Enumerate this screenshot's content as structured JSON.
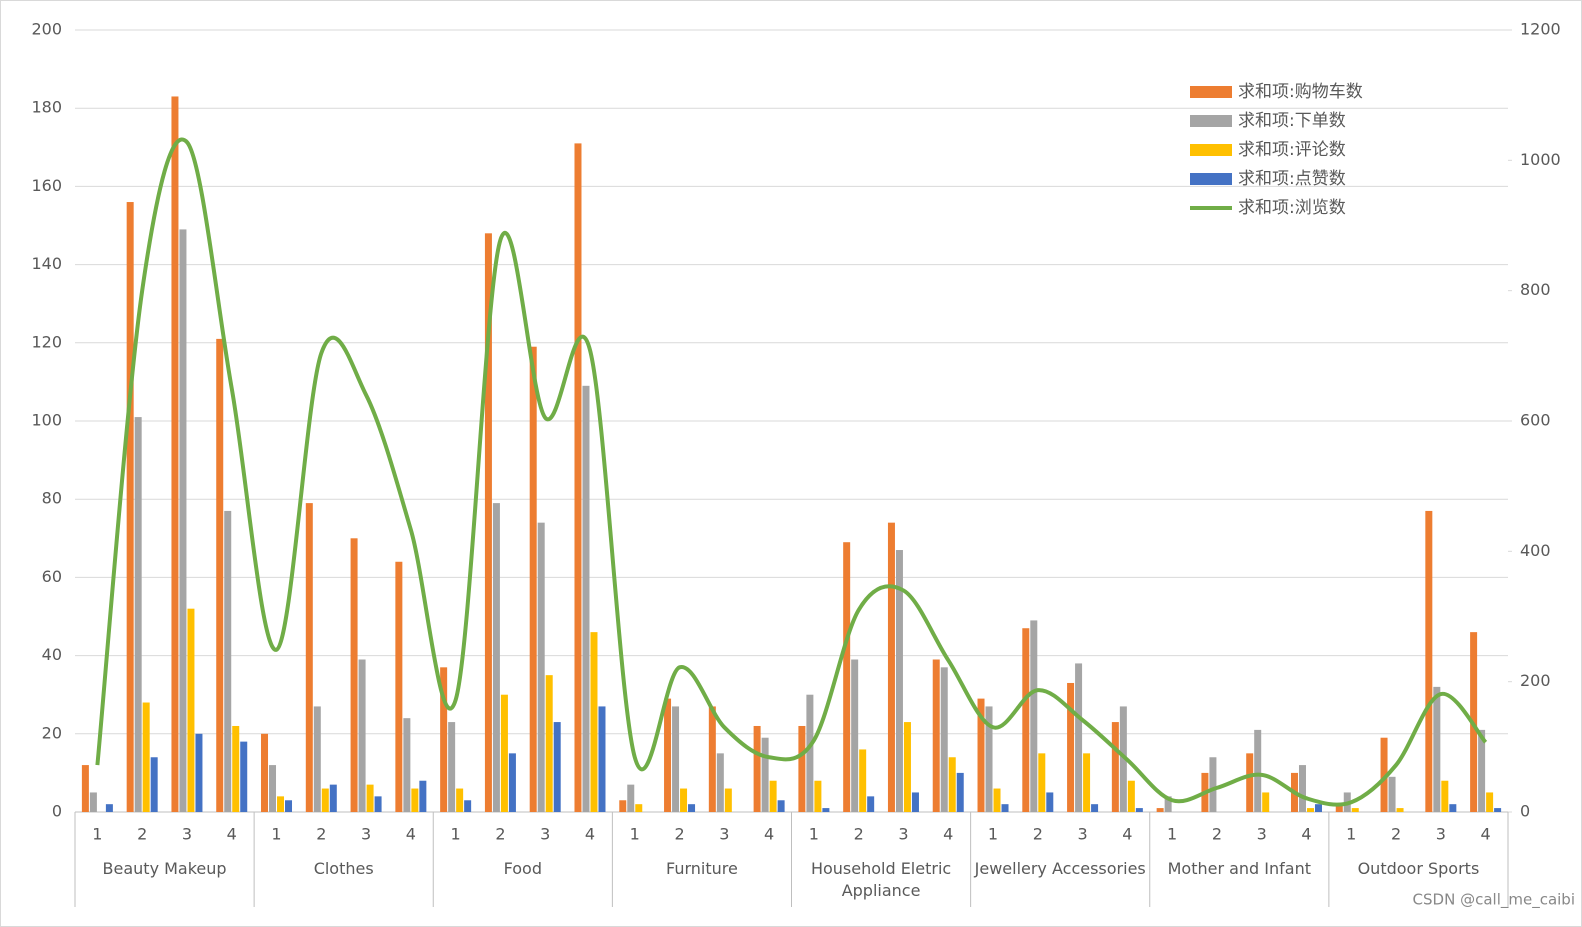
{
  "chart_data": {
    "type": "bar",
    "groups": [
      "Beauty Makeup",
      "Clothes",
      "Food",
      "Furniture",
      "Household Eletric Appliance",
      "Jewellery Accessories",
      "Mother and Infant",
      "Outdoor Sports"
    ],
    "categories": [
      "1",
      "2",
      "3",
      "4",
      "1",
      "2",
      "3",
      "4",
      "1",
      "2",
      "3",
      "4",
      "1",
      "2",
      "3",
      "4",
      "1",
      "2",
      "3",
      "4",
      "1",
      "2",
      "3",
      "4",
      "1",
      "2",
      "3",
      "4",
      "1",
      "2",
      "3",
      "4"
    ],
    "series": [
      {
        "name": "求和项:购物车数",
        "color": "#ed7d31",
        "type": "bar",
        "values": [
          12,
          156,
          183,
          121,
          20,
          79,
          70,
          64,
          37,
          148,
          119,
          171,
          3,
          29,
          27,
          22,
          22,
          69,
          74,
          39,
          29,
          47,
          33,
          23,
          1,
          10,
          15,
          10,
          2,
          19,
          77,
          46
        ]
      },
      {
        "name": "求和项:下单数",
        "color": "#a5a5a5",
        "type": "bar",
        "values": [
          5,
          101,
          149,
          77,
          12,
          27,
          39,
          24,
          23,
          79,
          74,
          109,
          7,
          27,
          15,
          19,
          30,
          39,
          67,
          37,
          27,
          49,
          38,
          27,
          4,
          14,
          21,
          12,
          5,
          9,
          32,
          21
        ]
      },
      {
        "name": "求和项:评论数",
        "color": "#ffc000",
        "type": "bar",
        "values": [
          0,
          28,
          52,
          22,
          4,
          6,
          7,
          6,
          6,
          30,
          35,
          46,
          2,
          6,
          6,
          8,
          8,
          16,
          23,
          14,
          6,
          15,
          15,
          8,
          0,
          0,
          5,
          1,
          1,
          1,
          8,
          5
        ]
      },
      {
        "name": "求和项:点赞数",
        "color": "#4472c4",
        "type": "bar",
        "values": [
          2,
          14,
          20,
          18,
          3,
          7,
          4,
          8,
          3,
          15,
          23,
          27,
          0,
          2,
          0,
          3,
          1,
          4,
          5,
          10,
          2,
          5,
          2,
          1,
          0,
          0,
          0,
          2,
          0,
          0,
          2,
          1
        ]
      },
      {
        "name": "求和项:浏览数",
        "color": "#70ad47",
        "type": "line",
        "axis": "y2",
        "values": [
          72,
          800,
          1028,
          650,
          249,
          704,
          640,
          433,
          172,
          878,
          605,
          709,
          84,
          222,
          130,
          84,
          110,
          310,
          340,
          233,
          130,
          187,
          141,
          80,
          18,
          37,
          57,
          21,
          15,
          72,
          181,
          107
        ]
      }
    ],
    "ylim": [
      0,
      200
    ],
    "yticks": [
      0,
      20,
      40,
      60,
      80,
      100,
      120,
      140,
      160,
      180,
      200
    ],
    "y2lim": [
      0,
      1200
    ],
    "y2ticks": [
      0,
      200,
      400,
      600,
      800,
      1000,
      1200
    ],
    "grid": true,
    "legend": "top-right",
    "watermark": "CSDN @call_me_caibi"
  }
}
